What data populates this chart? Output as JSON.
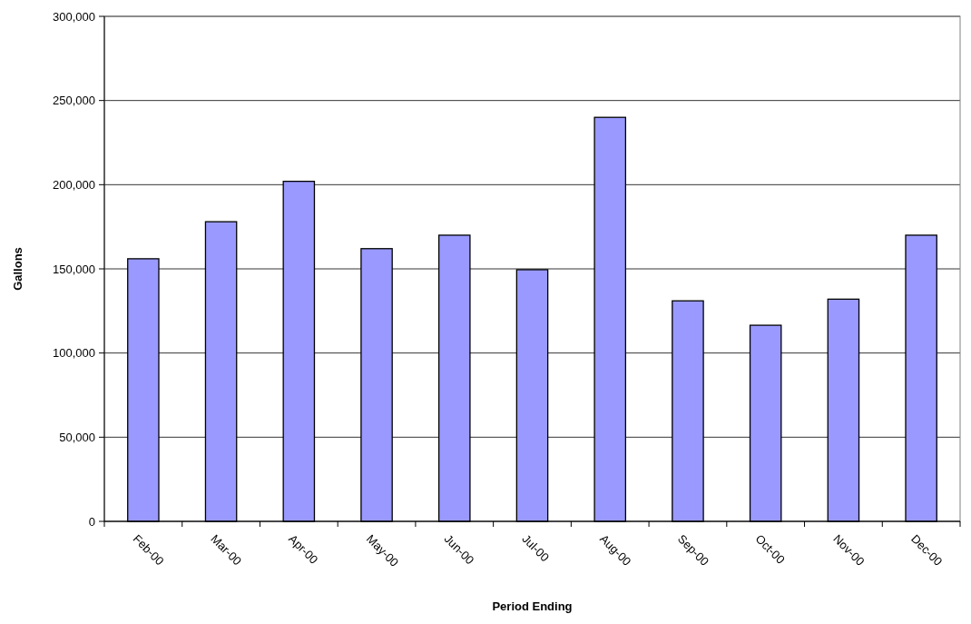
{
  "chart_data": {
    "type": "bar",
    "xlabel": "Period Ending",
    "ylabel": "Gallons",
    "categories": [
      "Feb-00",
      "Mar-00",
      "Apr-00",
      "May-00",
      "Jun-00",
      "Jul-00",
      "Aug-00",
      "Sep-00",
      "Oct-00",
      "Nov-00",
      "Dec-00"
    ],
    "values": [
      156000,
      178000,
      202000,
      162000,
      170000,
      149500,
      240000,
      131000,
      116500,
      132000,
      170000
    ],
    "color": "#9999ff",
    "ylim": [
      0,
      300000
    ],
    "yticks": [
      {
        "value": 0,
        "label": "0"
      },
      {
        "value": 50000,
        "label": "50,000"
      },
      {
        "value": 100000,
        "label": "100,000"
      },
      {
        "value": 150000,
        "label": "150,000"
      },
      {
        "value": 200000,
        "label": "200,000"
      },
      {
        "value": 250000,
        "label": "250,000"
      },
      {
        "value": 300000,
        "label": "300,000"
      }
    ],
    "grid": "y"
  }
}
